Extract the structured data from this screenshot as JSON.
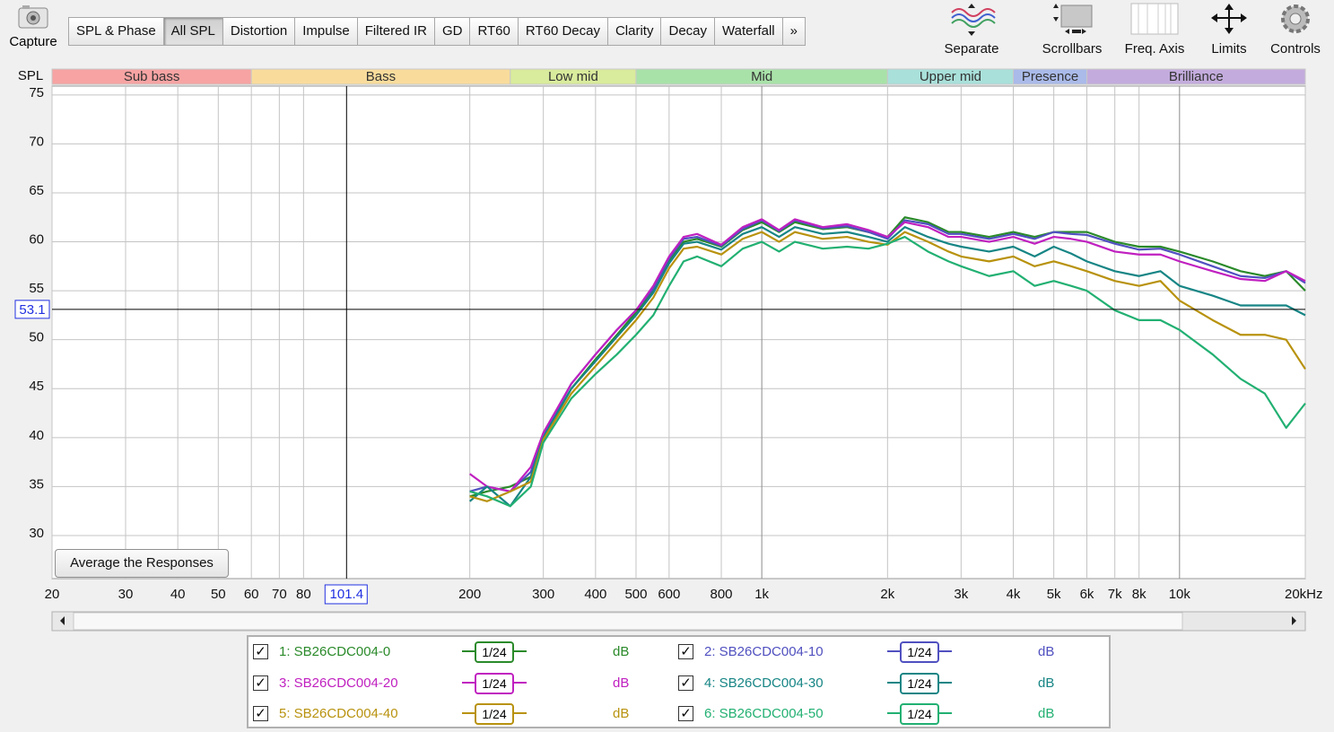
{
  "toolbar": {
    "capture": "Capture",
    "tabs": [
      "SPL & Phase",
      "All SPL",
      "Distortion",
      "Impulse",
      "Filtered IR",
      "GD",
      "RT60",
      "RT60 Decay",
      "Clarity",
      "Decay",
      "Waterfall",
      "»"
    ],
    "active_tab": 1,
    "tools": [
      "Separate",
      "Scrollbars",
      "Freq. Axis",
      "Limits",
      "Controls"
    ]
  },
  "chart_data": {
    "type": "line",
    "ylabel": "SPL",
    "xscale": "log",
    "grid": true,
    "xlim": [
      20,
      20000
    ],
    "ylim": [
      25.6,
      75.9
    ],
    "xticks": [
      20,
      30,
      40,
      50,
      60,
      70,
      80,
      200,
      300,
      400,
      500,
      600,
      800,
      {
        "value": 1000,
        "label": "1k"
      },
      {
        "value": 2000,
        "label": "2k"
      },
      {
        "value": 3000,
        "label": "3k"
      },
      {
        "value": 4000,
        "label": "4k"
      },
      {
        "value": 5000,
        "label": "5k"
      },
      {
        "value": 6000,
        "label": "6k"
      },
      {
        "value": 7000,
        "label": "7k"
      },
      {
        "value": 8000,
        "label": "8k"
      },
      {
        "value": 10000,
        "label": "10k"
      },
      {
        "value": 20000,
        "label": "20kHz"
      }
    ],
    "yticks": [
      30,
      35,
      40,
      45,
      50,
      55,
      60,
      65,
      70,
      75
    ],
    "bands": [
      {
        "name": "Sub bass",
        "from": 20,
        "to": 60,
        "color": "#f7a3a3"
      },
      {
        "name": "Bass",
        "from": 60,
        "to": 250,
        "color": "#f9dc9c"
      },
      {
        "name": "Low mid",
        "from": 250,
        "to": 500,
        "color": "#d9eb9c"
      },
      {
        "name": "Mid",
        "from": 500,
        "to": 2000,
        "color": "#a9e2a9"
      },
      {
        "name": "Upper mid",
        "from": 2000,
        "to": 4000,
        "color": "#a9e0da"
      },
      {
        "name": "Presence",
        "from": 4000,
        "to": 6000,
        "color": "#aabae9"
      },
      {
        "name": "Brilliance",
        "from": 6000,
        "to": 20000,
        "color": "#c3acdd"
      }
    ],
    "cursor_x": 101.4,
    "cursor_y": 53.1,
    "button": "Average the Responses",
    "x": [
      200,
      220,
      250,
      280,
      300,
      350,
      400,
      450,
      500,
      550,
      600,
      650,
      700,
      800,
      900,
      1000,
      1100,
      1200,
      1400,
      1600,
      1800,
      2000,
      2200,
      2500,
      2800,
      3000,
      3500,
      4000,
      4500,
      5000,
      5500,
      6000,
      7000,
      8000,
      9000,
      10000,
      12000,
      14000,
      16000,
      18000,
      20000
    ],
    "series": [
      {
        "name": "1: SB26CDC004-0",
        "color": "#2a8a2a",
        "smoothing": "1/24",
        "unit": "dB",
        "checked": true,
        "values": [
          34,
          34.5,
          35,
          36,
          40,
          45,
          48,
          50.5,
          52.8,
          55,
          58,
          60,
          60.3,
          59.5,
          61.2,
          62,
          61,
          62,
          61.3,
          61.5,
          61,
          60.5,
          62.5,
          62,
          61,
          61,
          60.5,
          61,
          60.5,
          61,
          61,
          61,
          60,
          59.5,
          59.5,
          59,
          58,
          57,
          56.5,
          57,
          55
        ]
      },
      {
        "name": "2: SB26CDC004-10",
        "color": "#5050c0",
        "smoothing": "1/24",
        "unit": "dB",
        "checked": true,
        "values": [
          34.5,
          35,
          34.5,
          36.5,
          40.2,
          45.5,
          48.5,
          51,
          53,
          55.2,
          58.3,
          60.3,
          60.5,
          59.6,
          61.3,
          62.2,
          61.1,
          62.2,
          61.4,
          61.6,
          61,
          60.3,
          62.2,
          61.8,
          60.8,
          60.8,
          60.3,
          60.8,
          60.3,
          61,
          60.8,
          60.7,
          59.8,
          59.2,
          59.3,
          58.7,
          57.5,
          56.5,
          56.3,
          57,
          55.8
        ]
      },
      {
        "name": "3: SB26CDC004-20",
        "color": "#c020c0",
        "smoothing": "1/24",
        "unit": "dB",
        "checked": true,
        "values": [
          36.3,
          35,
          34.5,
          37,
          40.5,
          45.5,
          48.5,
          51,
          53,
          55.5,
          58.5,
          60.5,
          60.8,
          59.7,
          61.5,
          62.3,
          61.2,
          62.3,
          61.5,
          61.8,
          61.2,
          60.5,
          62,
          61.5,
          60.5,
          60.5,
          60,
          60.5,
          59.8,
          60.5,
          60.3,
          60,
          59,
          58.7,
          58.7,
          58,
          57,
          56.2,
          56,
          57,
          56
        ]
      },
      {
        "name": "4: SB26CDC004-30",
        "color": "#178585",
        "smoothing": "1/24",
        "unit": "dB",
        "checked": true,
        "values": [
          33.5,
          35,
          33,
          36,
          40,
          45,
          47.8,
          50.3,
          52.5,
          54.8,
          57.8,
          59.8,
          60,
          59.2,
          60.8,
          61.5,
          60.5,
          61.5,
          60.8,
          61,
          60.5,
          60,
          61.5,
          60.5,
          59.8,
          59.5,
          59,
          59.5,
          58.5,
          59.5,
          58.8,
          58,
          57,
          56.5,
          57,
          55.5,
          54.5,
          53.5,
          53.5,
          53.5,
          52.5
        ]
      },
      {
        "name": "5: SB26CDC004-40",
        "color": "#b8920e",
        "smoothing": "1/24",
        "unit": "dB",
        "checked": true,
        "values": [
          34,
          33.5,
          34.5,
          35.5,
          39.8,
          44.5,
          47.3,
          49.8,
          52,
          54.3,
          57.3,
          59.3,
          59.5,
          58.7,
          60.3,
          61,
          60,
          61,
          60.3,
          60.5,
          60,
          59.7,
          61,
          60,
          59,
          58.5,
          58,
          58.5,
          57.5,
          58,
          57.5,
          57,
          56,
          55.5,
          56,
          54,
          52,
          50.5,
          50.5,
          50,
          47
        ]
      },
      {
        "name": "6: SB26CDC004-50",
        "color": "#22b072",
        "smoothing": "1/24",
        "unit": "dB",
        "checked": true,
        "values": [
          34.5,
          34,
          33,
          35,
          39.5,
          44,
          46.5,
          48.5,
          50.5,
          52.5,
          55.5,
          58,
          58.5,
          57.5,
          59.3,
          60,
          59,
          60,
          59.3,
          59.5,
          59.3,
          59.8,
          60.5,
          59,
          58,
          57.5,
          56.5,
          57,
          55.5,
          56,
          55.5,
          55,
          53,
          52,
          52,
          51,
          48.5,
          46,
          44.5,
          41,
          43.5
        ]
      }
    ]
  }
}
